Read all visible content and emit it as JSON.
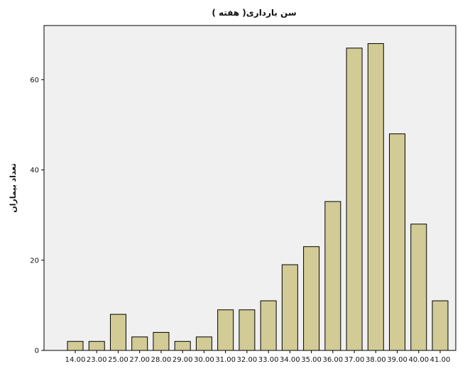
{
  "chart_data": {
    "type": "bar",
    "title": "سن بارداری( هفته )",
    "xlabel": "",
    "ylabel": "تعداد بیماران",
    "categories": [
      "14.00",
      "23.00",
      "25.00",
      "27.00",
      "28.00",
      "29.00",
      "30.00",
      "31.00",
      "32.00",
      "33.00",
      "34.00",
      "35.00",
      "36.00",
      "37.00",
      "38.00",
      "39.00",
      "40.00",
      "41.00"
    ],
    "values": [
      2,
      2,
      8,
      3,
      4,
      2,
      3,
      9,
      9,
      11,
      19,
      23,
      33,
      67,
      68,
      48,
      28,
      11
    ],
    "ylim": [
      0,
      72
    ],
    "yticks": [
      0,
      20,
      40,
      60
    ],
    "grid": false,
    "colors": {
      "plot_background": "#f0f0f0",
      "bar_fill": "#d2cb96",
      "bar_stroke": "#000000"
    }
  }
}
